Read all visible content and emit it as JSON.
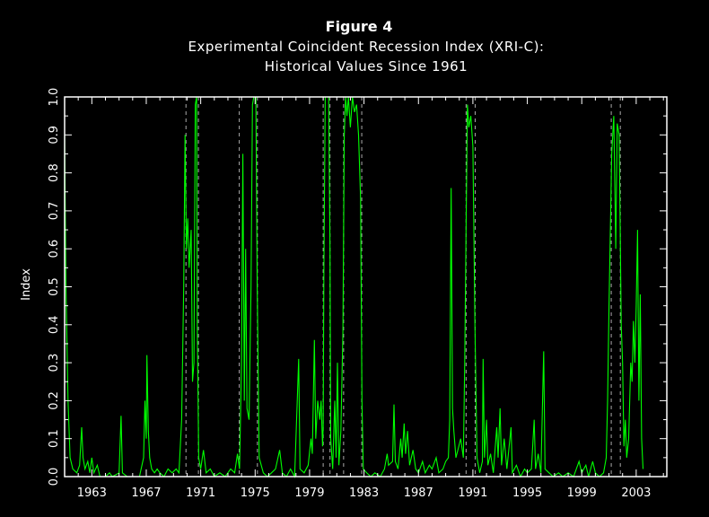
{
  "chart_data": {
    "type": "line",
    "title": "Figure 4",
    "subtitle_line1": "Experimental Coincident Recession Index (XRI-C):",
    "subtitle_line2": "Historical Values Since 1961",
    "ylabel": "Index",
    "xlabel": "",
    "xlim": [
      1961.0,
      2005.25
    ],
    "ylim": [
      0,
      1.0
    ],
    "x_ticks": [
      "1963",
      "1967",
      "1971",
      "1975",
      "1979",
      "1983",
      "1987",
      "1991",
      "1995",
      "1999",
      "2003"
    ],
    "x_tick_values": [
      1963,
      1967,
      1971,
      1975,
      1979,
      1983,
      1987,
      1991,
      1995,
      1999,
      2003
    ],
    "y_ticks": [
      "0.0",
      "0.1",
      "0.2",
      "0.3",
      "0.4",
      "0.5",
      "0.6",
      "0.7",
      "0.8",
      "0.9",
      "1.0"
    ],
    "y_tick_values": [
      0,
      0.1,
      0.2,
      0.3,
      0.4,
      0.5,
      0.6,
      0.7,
      0.8,
      0.9,
      1.0
    ],
    "series": [
      {
        "color": "#00ff00",
        "points": [
          [
            1961.0,
            0.9
          ],
          [
            1961.1,
            0.5
          ],
          [
            1961.25,
            0.2
          ],
          [
            1961.4,
            0.05
          ],
          [
            1961.6,
            0.02
          ],
          [
            1961.9,
            0.01
          ],
          [
            1962.1,
            0.03
          ],
          [
            1962.25,
            0.13
          ],
          [
            1962.35,
            0.05
          ],
          [
            1962.5,
            0.02
          ],
          [
            1962.7,
            0.04
          ],
          [
            1962.85,
            0.01
          ],
          [
            1963.0,
            0.05
          ],
          [
            1963.15,
            0.01
          ],
          [
            1963.4,
            0.03
          ],
          [
            1963.6,
            0.0
          ],
          [
            1964.0,
            0.0
          ],
          [
            1964.3,
            0.01
          ],
          [
            1964.5,
            0.0
          ],
          [
            1965.0,
            0.01
          ],
          [
            1965.15,
            0.16
          ],
          [
            1965.25,
            0.01
          ],
          [
            1965.6,
            0.0
          ],
          [
            1966.2,
            0.0
          ],
          [
            1966.5,
            0.0
          ],
          [
            1966.8,
            0.05
          ],
          [
            1966.9,
            0.2
          ],
          [
            1967.0,
            0.1
          ],
          [
            1967.05,
            0.32
          ],
          [
            1967.15,
            0.12
          ],
          [
            1967.25,
            0.05
          ],
          [
            1967.4,
            0.02
          ],
          [
            1967.6,
            0.01
          ],
          [
            1967.8,
            0.02
          ],
          [
            1968.0,
            0.01
          ],
          [
            1968.3,
            0.0
          ],
          [
            1968.6,
            0.02
          ],
          [
            1968.9,
            0.01
          ],
          [
            1969.2,
            0.02
          ],
          [
            1969.4,
            0.01
          ],
          [
            1969.6,
            0.15
          ],
          [
            1969.75,
            0.5
          ],
          [
            1969.85,
            0.9
          ],
          [
            1969.95,
            0.6
          ],
          [
            1970.05,
            0.68
          ],
          [
            1970.15,
            0.55
          ],
          [
            1970.3,
            0.65
          ],
          [
            1970.4,
            0.25
          ],
          [
            1970.5,
            0.3
          ],
          [
            1970.6,
            0.98
          ],
          [
            1970.7,
            1.0
          ],
          [
            1970.75,
            0.4
          ],
          [
            1970.85,
            0.05
          ],
          [
            1971.0,
            0.02
          ],
          [
            1971.2,
            0.07
          ],
          [
            1971.4,
            0.01
          ],
          [
            1971.7,
            0.02
          ],
          [
            1972.0,
            0.0
          ],
          [
            1972.4,
            0.01
          ],
          [
            1972.8,
            0.0
          ],
          [
            1973.2,
            0.02
          ],
          [
            1973.5,
            0.01
          ],
          [
            1973.7,
            0.06
          ],
          [
            1973.85,
            0.02
          ],
          [
            1974.0,
            0.3
          ],
          [
            1974.1,
            0.85
          ],
          [
            1974.2,
            0.2
          ],
          [
            1974.3,
            0.6
          ],
          [
            1974.4,
            0.18
          ],
          [
            1974.55,
            0.15
          ],
          [
            1974.7,
            0.5
          ],
          [
            1974.8,
            0.98
          ],
          [
            1974.9,
            1.0
          ],
          [
            1975.05,
            1.0
          ],
          [
            1975.15,
            0.5
          ],
          [
            1975.3,
            0.05
          ],
          [
            1975.6,
            0.01
          ],
          [
            1975.9,
            0.0
          ],
          [
            1976.2,
            0.01
          ],
          [
            1976.5,
            0.02
          ],
          [
            1976.8,
            0.07
          ],
          [
            1977.0,
            0.01
          ],
          [
            1977.3,
            0.0
          ],
          [
            1977.6,
            0.02
          ],
          [
            1977.9,
            0.0
          ],
          [
            1978.2,
            0.31
          ],
          [
            1978.3,
            0.02
          ],
          [
            1978.6,
            0.01
          ],
          [
            1978.9,
            0.03
          ],
          [
            1979.1,
            0.1
          ],
          [
            1979.2,
            0.06
          ],
          [
            1979.35,
            0.36
          ],
          [
            1979.45,
            0.1
          ],
          [
            1979.6,
            0.2
          ],
          [
            1979.75,
            0.15
          ],
          [
            1979.85,
            0.2
          ],
          [
            1979.95,
            0.08
          ],
          [
            1980.0,
            0.13
          ],
          [
            1980.05,
            0.55
          ],
          [
            1980.15,
            1.0
          ],
          [
            1980.4,
            1.0
          ],
          [
            1980.5,
            0.6
          ],
          [
            1980.55,
            0.1
          ],
          [
            1980.7,
            0.02
          ],
          [
            1980.85,
            0.2
          ],
          [
            1980.95,
            0.05
          ],
          [
            1981.05,
            0.3
          ],
          [
            1981.15,
            0.03
          ],
          [
            1981.3,
            0.12
          ],
          [
            1981.45,
            0.38
          ],
          [
            1981.55,
            0.9
          ],
          [
            1981.65,
            1.0
          ],
          [
            1981.75,
            0.95
          ],
          [
            1981.85,
            1.0
          ],
          [
            1982.0,
            0.92
          ],
          [
            1982.15,
            1.0
          ],
          [
            1982.3,
            0.96
          ],
          [
            1982.45,
            0.98
          ],
          [
            1982.6,
            0.9
          ],
          [
            1982.75,
            0.73
          ],
          [
            1982.85,
            0.2
          ],
          [
            1982.95,
            0.02
          ],
          [
            1983.2,
            0.01
          ],
          [
            1983.5,
            0.0
          ],
          [
            1983.8,
            0.01
          ],
          [
            1984.2,
            0.0
          ],
          [
            1984.5,
            0.02
          ],
          [
            1984.7,
            0.06
          ],
          [
            1984.8,
            0.03
          ],
          [
            1985.1,
            0.04
          ],
          [
            1985.2,
            0.19
          ],
          [
            1985.3,
            0.04
          ],
          [
            1985.5,
            0.02
          ],
          [
            1985.7,
            0.1
          ],
          [
            1985.8,
            0.05
          ],
          [
            1985.95,
            0.14
          ],
          [
            1986.05,
            0.06
          ],
          [
            1986.2,
            0.12
          ],
          [
            1986.35,
            0.03
          ],
          [
            1986.6,
            0.07
          ],
          [
            1986.8,
            0.02
          ],
          [
            1987.0,
            0.01
          ],
          [
            1987.3,
            0.04
          ],
          [
            1987.5,
            0.01
          ],
          [
            1987.8,
            0.03
          ],
          [
            1988.0,
            0.02
          ],
          [
            1988.3,
            0.05
          ],
          [
            1988.5,
            0.01
          ],
          [
            1988.8,
            0.02
          ],
          [
            1989.0,
            0.04
          ],
          [
            1989.2,
            0.05
          ],
          [
            1989.3,
            0.15
          ],
          [
            1989.4,
            0.76
          ],
          [
            1989.5,
            0.18
          ],
          [
            1989.6,
            0.12
          ],
          [
            1989.75,
            0.05
          ],
          [
            1989.9,
            0.07
          ],
          [
            1990.1,
            0.1
          ],
          [
            1990.3,
            0.05
          ],
          [
            1990.4,
            0.3
          ],
          [
            1990.5,
            0.65
          ],
          [
            1990.6,
            0.98
          ],
          [
            1990.7,
            0.92
          ],
          [
            1990.85,
            0.95
          ],
          [
            1991.0,
            0.87
          ],
          [
            1991.15,
            0.4
          ],
          [
            1991.3,
            0.05
          ],
          [
            1991.5,
            0.01
          ],
          [
            1991.7,
            0.04
          ],
          [
            1991.75,
            0.31
          ],
          [
            1991.85,
            0.05
          ],
          [
            1992.0,
            0.15
          ],
          [
            1992.1,
            0.03
          ],
          [
            1992.3,
            0.06
          ],
          [
            1992.5,
            0.01
          ],
          [
            1992.75,
            0.13
          ],
          [
            1992.85,
            0.05
          ],
          [
            1993.0,
            0.18
          ],
          [
            1993.1,
            0.03
          ],
          [
            1993.3,
            0.1
          ],
          [
            1993.5,
            0.02
          ],
          [
            1993.8,
            0.13
          ],
          [
            1993.9,
            0.01
          ],
          [
            1994.2,
            0.03
          ],
          [
            1994.5,
            0.0
          ],
          [
            1994.8,
            0.02
          ],
          [
            1995.0,
            0.01
          ],
          [
            1995.3,
            0.02
          ],
          [
            1995.5,
            0.15
          ],
          [
            1995.6,
            0.02
          ],
          [
            1995.8,
            0.06
          ],
          [
            1996.0,
            0.01
          ],
          [
            1996.2,
            0.33
          ],
          [
            1996.3,
            0.02
          ],
          [
            1996.6,
            0.01
          ],
          [
            1996.9,
            0.0
          ],
          [
            1997.3,
            0.01
          ],
          [
            1997.6,
            0.0
          ],
          [
            1998.0,
            0.01
          ],
          [
            1998.4,
            0.0
          ],
          [
            1998.8,
            0.04
          ],
          [
            1999.0,
            0.01
          ],
          [
            1999.3,
            0.03
          ],
          [
            1999.5,
            0.0
          ],
          [
            1999.8,
            0.04
          ],
          [
            2000.0,
            0.01
          ],
          [
            2000.3,
            0.0
          ],
          [
            2000.6,
            0.01
          ],
          [
            2000.8,
            0.05
          ],
          [
            2000.9,
            0.2
          ],
          [
            2001.0,
            0.45
          ],
          [
            2001.1,
            0.65
          ],
          [
            2001.2,
            0.85
          ],
          [
            2001.35,
            0.95
          ],
          [
            2001.5,
            0.6
          ],
          [
            2001.6,
            0.93
          ],
          [
            2001.75,
            0.9
          ],
          [
            2001.9,
            0.4
          ],
          [
            2002.0,
            0.3
          ],
          [
            2002.1,
            0.08
          ],
          [
            2002.2,
            0.15
          ],
          [
            2002.3,
            0.05
          ],
          [
            2002.45,
            0.1
          ],
          [
            2002.6,
            0.3
          ],
          [
            2002.7,
            0.25
          ],
          [
            2002.8,
            0.41
          ],
          [
            2002.9,
            0.3
          ],
          [
            2003.0,
            0.45
          ],
          [
            2003.1,
            0.65
          ],
          [
            2003.2,
            0.2
          ],
          [
            2003.3,
            0.48
          ],
          [
            2003.4,
            0.1
          ],
          [
            2003.5,
            0.02
          ]
        ]
      }
    ],
    "shaded_periods": [
      [
        1969.917,
        1970.833
      ],
      [
        1973.833,
        1975.167
      ],
      [
        1980.0,
        1980.5
      ],
      [
        1981.5,
        1982.833
      ],
      [
        1990.5,
        1991.167
      ],
      [
        2001.167,
        2001.833
      ]
    ],
    "grid": false,
    "legend": "none"
  }
}
